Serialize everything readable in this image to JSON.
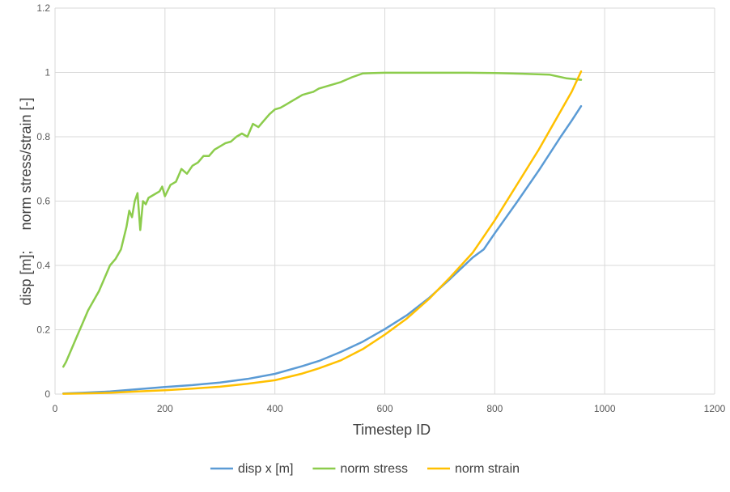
{
  "chart_data": {
    "type": "line",
    "title": "",
    "xlabel": "Timestep ID",
    "ylabel": "disp [m];     norm stress/strain [-]",
    "xlim": [
      0,
      1200
    ],
    "ylim": [
      0,
      1.2
    ],
    "x_ticks": [
      "0",
      "200",
      "400",
      "600",
      "800",
      "1000",
      "1200"
    ],
    "y_ticks": [
      "0",
      "0.2",
      "0.4",
      "0.6",
      "0.8",
      "1",
      "1.2"
    ],
    "grid": true,
    "legend_position": "bottom",
    "colors": {
      "disp": "#5b9bd5",
      "stress": "#8ccc4c",
      "strain": "#ffc000",
      "grid": "#d9d9d9"
    },
    "series": [
      {
        "name": "disp x [m]",
        "x": [
          15,
          50,
          100,
          150,
          200,
          250,
          300,
          350,
          400,
          450,
          480,
          520,
          560,
          600,
          640,
          680,
          720,
          760,
          780,
          800,
          840,
          880,
          920,
          940,
          957
        ],
        "y": [
          0.002,
          0.004,
          0.008,
          0.015,
          0.022,
          0.028,
          0.036,
          0.047,
          0.063,
          0.087,
          0.103,
          0.131,
          0.163,
          0.202,
          0.245,
          0.298,
          0.36,
          0.425,
          0.45,
          0.5,
          0.596,
          0.695,
          0.8,
          0.85,
          0.895
        ]
      },
      {
        "name": "norm stress",
        "x": [
          15,
          20,
          30,
          40,
          50,
          60,
          70,
          80,
          90,
          100,
          110,
          120,
          130,
          135,
          140,
          145,
          150,
          155,
          160,
          165,
          170,
          180,
          190,
          195,
          200,
          210,
          220,
          230,
          240,
          250,
          260,
          270,
          280,
          290,
          300,
          310,
          320,
          330,
          340,
          350,
          360,
          370,
          380,
          390,
          400,
          410,
          420,
          430,
          440,
          450,
          460,
          470,
          480,
          490,
          500,
          520,
          540,
          560,
          580,
          600,
          650,
          700,
          750,
          800,
          850,
          900,
          930,
          957
        ],
        "y": [
          0.085,
          0.1,
          0.14,
          0.18,
          0.22,
          0.26,
          0.29,
          0.32,
          0.36,
          0.4,
          0.42,
          0.45,
          0.52,
          0.57,
          0.55,
          0.6,
          0.625,
          0.51,
          0.6,
          0.59,
          0.61,
          0.62,
          0.63,
          0.645,
          0.615,
          0.65,
          0.66,
          0.7,
          0.685,
          0.71,
          0.72,
          0.74,
          0.74,
          0.76,
          0.77,
          0.78,
          0.785,
          0.8,
          0.81,
          0.8,
          0.84,
          0.83,
          0.85,
          0.87,
          0.885,
          0.89,
          0.9,
          0.91,
          0.92,
          0.93,
          0.935,
          0.94,
          0.95,
          0.955,
          0.96,
          0.97,
          0.985,
          0.997,
          0.998,
          0.999,
          0.999,
          0.999,
          0.999,
          0.998,
          0.996,
          0.993,
          0.982,
          0.977
        ]
      },
      {
        "name": "norm strain",
        "x": [
          15,
          50,
          100,
          150,
          200,
          250,
          300,
          350,
          400,
          450,
          480,
          520,
          560,
          600,
          640,
          680,
          720,
          760,
          780,
          800,
          840,
          880,
          920,
          940,
          957
        ],
        "y": [
          0.001,
          0.002,
          0.004,
          0.008,
          0.012,
          0.017,
          0.023,
          0.032,
          0.043,
          0.064,
          0.08,
          0.105,
          0.14,
          0.185,
          0.235,
          0.295,
          0.365,
          0.44,
          0.49,
          0.54,
          0.65,
          0.76,
          0.88,
          0.94,
          1.003
        ]
      }
    ]
  }
}
